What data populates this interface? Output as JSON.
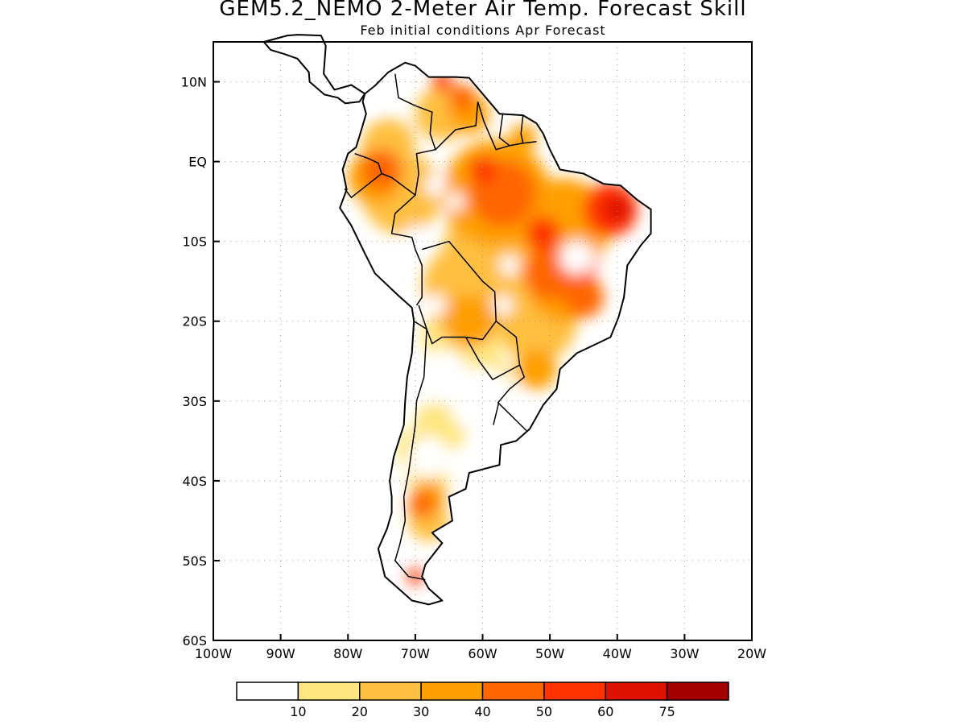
{
  "title": "GEM5.2_NEMO 2-Meter Air Temp. Forecast Skill",
  "subtitle": "Feb initial conditions  Apr Forecast",
  "map": {
    "region": "South America",
    "lon_range": [
      -100,
      -20
    ],
    "lat_range": [
      -60,
      15
    ],
    "lon_ticks": [
      "100W",
      "90W",
      "80W",
      "70W",
      "60W",
      "50W",
      "40W",
      "30W",
      "20W"
    ],
    "lat_ticks": [
      "10N",
      "EQ",
      "10S",
      "20S",
      "30S",
      "40S",
      "50S",
      "60S"
    ],
    "gridlines": "dotted",
    "coastline_color": "#000000"
  },
  "colorbar": {
    "colors": [
      "#ffffff",
      "#ffe680",
      "#ffbf40",
      "#ff9f00",
      "#ff6600",
      "#ff3300",
      "#dd1100",
      "#a50000"
    ],
    "labels": [
      "10",
      "20",
      "30",
      "40",
      "50",
      "60",
      "75"
    ]
  }
}
